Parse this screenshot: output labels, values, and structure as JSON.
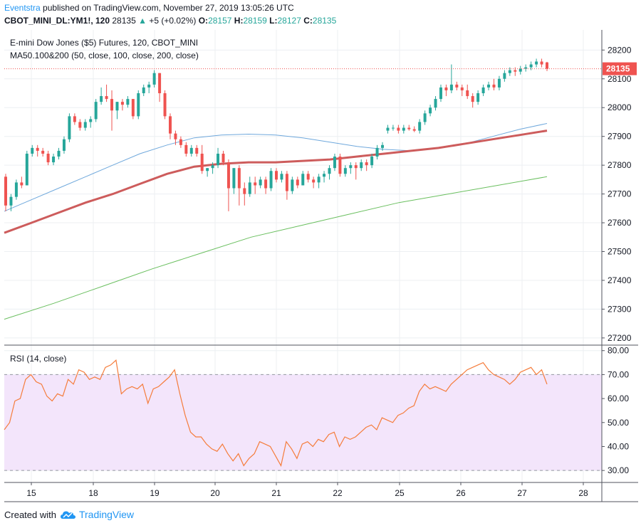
{
  "header": {
    "author": "Eventstra",
    "published_text": "published on TradingView.com, November 27, 2019 13:05:26 UTC",
    "symbol_line": "CBOT_MINI_DL:YM1!, 120",
    "last": "28135",
    "change": "+5 (+0.02%)",
    "o_label": "O:",
    "o_value": "28157",
    "h_label": "H:",
    "h_value": "28159",
    "l_label": "L:",
    "l_value": "28127",
    "c_label": "C:",
    "c_value": "28135"
  },
  "footer": {
    "created_with": "Created with",
    "brand": "TradingView"
  },
  "colors": {
    "up": "#26a69a",
    "down": "#ef5350",
    "ma50": "#6fa8dc",
    "ma100": "#cd5c5c",
    "ma200": "#6abf5f",
    "rsi": "#f57c3b",
    "rsi_band": "#f3e5fb",
    "price_line": "#ef5350",
    "author": "#2196f3"
  },
  "chart_data": [
    {
      "type": "candlestick",
      "title": "E-mini Dow Jones ($5) Futures, 120, CBOT_MINI",
      "subtitle": "MA50.100&200 (50, close, 100, close, 200, close)",
      "ylim": [
        27175,
        28270
      ],
      "y_ticks": [
        "27200",
        "27300",
        "27400",
        "27500",
        "27600",
        "27700",
        "27800",
        "27900",
        "28000",
        "28100",
        "28200"
      ],
      "x_ticks": [
        "15",
        "18",
        "19",
        "20",
        "21",
        "22",
        "25",
        "26",
        "27",
        "28"
      ],
      "last_price_label": "28135",
      "last_price": 28135,
      "candles": [
        [
          27760,
          27770,
          27640,
          27660
        ],
        [
          27660,
          27700,
          27640,
          27690
        ],
        [
          27690,
          27750,
          27680,
          27740
        ],
        [
          27740,
          27760,
          27720,
          27730
        ],
        [
          27730,
          27850,
          27730,
          27840
        ],
        [
          27840,
          27870,
          27830,
          27860
        ],
        [
          27860,
          27870,
          27830,
          27850
        ],
        [
          27850,
          27860,
          27830,
          27840
        ],
        [
          27840,
          27850,
          27800,
          27810
        ],
        [
          27810,
          27840,
          27800,
          27830
        ],
        [
          27830,
          27860,
          27820,
          27850
        ],
        [
          27850,
          27900,
          27840,
          27890
        ],
        [
          27890,
          27980,
          27880,
          27970
        ],
        [
          27970,
          27980,
          27940,
          27950
        ],
        [
          27950,
          27960,
          27920,
          27930
        ],
        [
          27930,
          27960,
          27920,
          27950
        ],
        [
          27950,
          27970,
          27930,
          27960
        ],
        [
          27960,
          28030,
          27950,
          28020
        ],
        [
          28020,
          28070,
          28010,
          28040
        ],
        [
          28040,
          28080,
          28020,
          28030
        ],
        [
          28030,
          28060,
          27920,
          27990
        ],
        [
          27990,
          28020,
          27960,
          28020
        ],
        [
          28020,
          28030,
          27990,
          28010
        ],
        [
          28010,
          28040,
          28000,
          28030
        ],
        [
          28030,
          28030,
          27960,
          27970
        ],
        [
          27970,
          28060,
          27960,
          28050
        ],
        [
          28050,
          28080,
          28040,
          28070
        ],
        [
          28070,
          28090,
          28050,
          28080
        ],
        [
          28080,
          28130,
          28070,
          28120
        ],
        [
          28120,
          28120,
          28020,
          28050
        ],
        [
          28050,
          28060,
          27960,
          27970
        ],
        [
          27970,
          27980,
          27890,
          27910
        ],
        [
          27910,
          27920,
          27870,
          27890
        ],
        [
          27890,
          27900,
          27860,
          27870
        ],
        [
          27870,
          27880,
          27830,
          27840
        ],
        [
          27840,
          27870,
          27830,
          27860
        ],
        [
          27860,
          27870,
          27830,
          27840
        ],
        [
          27840,
          27870,
          27770,
          27780
        ],
        [
          27780,
          27790,
          27760,
          27790
        ],
        [
          27790,
          27810,
          27770,
          27800
        ],
        [
          27800,
          27860,
          27790,
          27840
        ],
        [
          27840,
          27850,
          27800,
          27810
        ],
        [
          27810,
          27820,
          27640,
          27720
        ],
        [
          27720,
          27790,
          27700,
          27790
        ],
        [
          27790,
          27800,
          27660,
          27720
        ],
        [
          27720,
          27740,
          27660,
          27700
        ],
        [
          27700,
          27760,
          27690,
          27740
        ],
        [
          27740,
          27760,
          27700,
          27730
        ],
        [
          27730,
          27760,
          27720,
          27750
        ],
        [
          27750,
          27760,
          27700,
          27720
        ],
        [
          27720,
          27790,
          27710,
          27780
        ],
        [
          27780,
          27790,
          27740,
          27750
        ],
        [
          27750,
          27780,
          27740,
          27770
        ],
        [
          27770,
          27780,
          27680,
          27710
        ],
        [
          27710,
          27760,
          27700,
          27750
        ],
        [
          27750,
          27760,
          27720,
          27730
        ],
        [
          27730,
          27780,
          27730,
          27770
        ],
        [
          27770,
          27780,
          27740,
          27750
        ],
        [
          27750,
          27760,
          27720,
          27740
        ],
        [
          27740,
          27770,
          27720,
          27760
        ],
        [
          27760,
          27780,
          27740,
          27770
        ],
        [
          27770,
          27800,
          27750,
          27790
        ],
        [
          27790,
          27840,
          27780,
          27830
        ],
        [
          27830,
          27840,
          27760,
          27770
        ],
        [
          27770,
          27800,
          27760,
          27790
        ],
        [
          27790,
          27810,
          27770,
          27800
        ],
        [
          27800,
          27810,
          27750,
          27790
        ],
        [
          27790,
          27820,
          27780,
          27810
        ],
        [
          27810,
          27820,
          27780,
          27800
        ],
        [
          27800,
          27840,
          27790,
          27830
        ],
        [
          27830,
          27870,
          27820,
          27860
        ],
        [
          27860,
          27880,
          27850,
          27870
        ],
        [
          27920,
          27940,
          27910,
          27930
        ],
        [
          27930,
          27940,
          27920,
          27930
        ],
        [
          27930,
          27940,
          27910,
          27920
        ],
        [
          27920,
          27940,
          27910,
          27930
        ],
        [
          27930,
          27940,
          27920,
          27925
        ],
        [
          27925,
          27935,
          27915,
          27920
        ],
        [
          27920,
          27960,
          27910,
          27950
        ],
        [
          27950,
          27990,
          27940,
          27980
        ],
        [
          27980,
          28010,
          27970,
          28000
        ],
        [
          28000,
          28040,
          27990,
          28030
        ],
        [
          28030,
          28080,
          28020,
          28070
        ],
        [
          28070,
          28080,
          28040,
          28060
        ],
        [
          28060,
          28150,
          28050,
          28080
        ],
        [
          28080,
          28090,
          28060,
          28070
        ],
        [
          28070,
          28080,
          28040,
          28060
        ],
        [
          28060,
          28080,
          28030,
          28040
        ],
        [
          28040,
          28050,
          28000,
          28020
        ],
        [
          28020,
          28060,
          28010,
          28050
        ],
        [
          28050,
          28080,
          28040,
          28070
        ],
        [
          28070,
          28090,
          28060,
          28080
        ],
        [
          28080,
          28100,
          28060,
          28070
        ],
        [
          28070,
          28110,
          28060,
          28100
        ],
        [
          28100,
          28130,
          28090,
          28120
        ],
        [
          28120,
          28140,
          28110,
          28130
        ],
        [
          28130,
          28140,
          28110,
          28125
        ],
        [
          28125,
          28145,
          28115,
          28135
        ],
        [
          28135,
          28150,
          28125,
          28140
        ],
        [
          28140,
          28160,
          28130,
          28150
        ],
        [
          28150,
          28170,
          28140,
          28160
        ],
        [
          28160,
          28170,
          28140,
          28150
        ],
        [
          28157,
          28159,
          28127,
          28135
        ]
      ],
      "ma50": [
        27640,
        27680,
        27720,
        27760,
        27800,
        27840,
        27870,
        27895,
        27905,
        27908,
        27905,
        27895,
        27880,
        27865,
        27855,
        27850,
        27860,
        27875,
        27900,
        27925,
        27945
      ],
      "ma100": [
        27565,
        27600,
        27635,
        27670,
        27700,
        27735,
        27770,
        27795,
        27805,
        27810,
        27810,
        27815,
        27820,
        27830,
        27840,
        27850,
        27860,
        27875,
        27890,
        27905,
        27920
      ],
      "ma200": [
        27265,
        27320,
        27380,
        27440,
        27495,
        27550,
        27590,
        27630,
        27670,
        27700,
        27730,
        27760
      ]
    },
    {
      "type": "line",
      "title": "RSI (14, close)",
      "ylim": [
        25,
        82
      ],
      "y_ticks": [
        "30.00",
        "40.00",
        "50.00",
        "60.00",
        "70.00",
        "80.00"
      ],
      "band": [
        30,
        70
      ],
      "values": [
        47,
        50,
        59,
        60,
        68,
        70,
        67,
        66,
        61,
        59,
        62,
        61,
        68,
        66,
        72,
        71,
        68,
        69,
        68,
        73,
        74,
        76,
        62,
        64,
        65,
        64,
        66,
        58,
        64,
        65,
        67,
        69,
        72,
        62,
        53,
        46,
        44,
        44,
        41,
        39,
        38,
        41,
        37,
        34,
        37,
        32,
        35,
        37,
        42,
        41,
        40,
        36,
        32,
        42,
        39,
        35,
        41,
        42,
        40,
        43,
        42,
        45,
        46,
        40,
        44,
        43,
        44,
        46,
        48,
        49,
        47,
        52,
        51,
        50,
        53,
        54,
        56,
        57,
        63,
        66,
        64,
        65,
        64,
        63,
        66,
        68,
        70,
        72,
        73,
        74,
        75,
        72,
        70,
        69,
        68,
        66,
        68,
        71,
        72,
        73,
        70,
        72,
        66
      ]
    }
  ]
}
